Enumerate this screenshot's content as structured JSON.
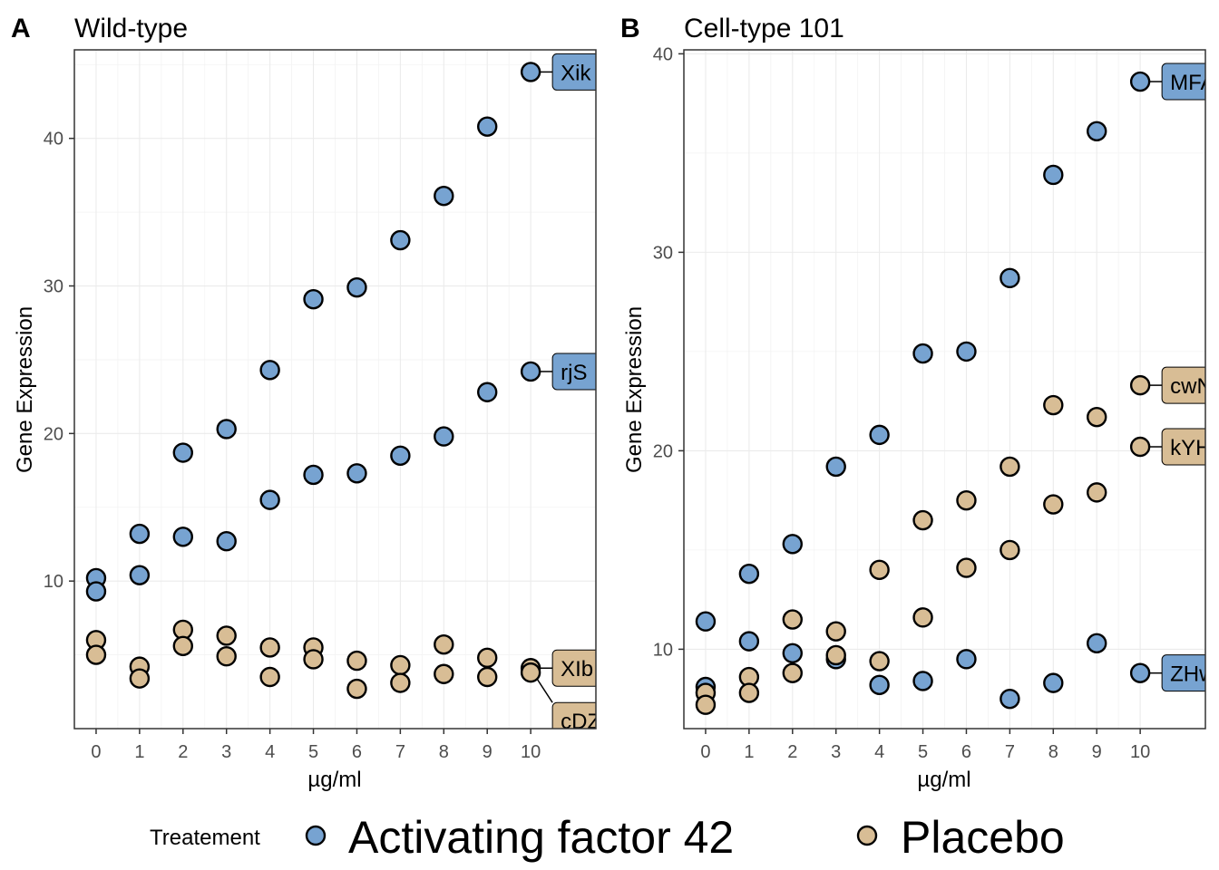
{
  "legend": {
    "title": "Treatement",
    "items": [
      {
        "label": "Activating factor 42",
        "color": "#77a3d1"
      },
      {
        "label": "Placebo",
        "color": "#d8bd95"
      }
    ]
  },
  "chart_data": [
    {
      "type": "scatter",
      "tag": "A",
      "title": "Wild-type",
      "xlabel": "µg/ml",
      "ylabel": "Gene Expression",
      "xlim": [
        -0.5,
        11.5
      ],
      "ylim": [
        0,
        46
      ],
      "xticks": [
        0,
        1,
        2,
        3,
        4,
        5,
        6,
        7,
        8,
        9,
        10
      ],
      "yticks": [
        10,
        20,
        30,
        40
      ],
      "grid": true,
      "series": [
        {
          "group": "Activating factor 42",
          "color": "#77a3d1",
          "x": [
            0,
            1,
            2,
            3,
            4,
            5,
            6,
            7,
            8,
            9,
            10
          ],
          "y": [
            10.2,
            13.2,
            18.7,
            20.3,
            24.3,
            29.1,
            29.9,
            33.1,
            36.1,
            40.8,
            44.5
          ],
          "label": "Xik"
        },
        {
          "group": "Activating factor 42",
          "color": "#77a3d1",
          "x": [
            0,
            1,
            2,
            3,
            4,
            5,
            6,
            7,
            8,
            9,
            10
          ],
          "y": [
            9.3,
            10.4,
            13.0,
            12.7,
            15.5,
            17.2,
            17.3,
            18.5,
            19.8,
            22.8,
            24.2
          ],
          "label": "rjS"
        },
        {
          "group": "Placebo",
          "color": "#d8bd95",
          "x": [
            0,
            1,
            2,
            3,
            4,
            5,
            6,
            7,
            8,
            9,
            10
          ],
          "y": [
            6.0,
            4.2,
            6.7,
            6.3,
            5.5,
            5.5,
            4.6,
            4.3,
            5.7,
            4.8,
            4.1
          ],
          "label": "XIb"
        },
        {
          "group": "Placebo",
          "color": "#d8bd95",
          "x": [
            0,
            1,
            2,
            3,
            4,
            5,
            6,
            7,
            8,
            9,
            10
          ],
          "y": [
            5.0,
            3.4,
            5.6,
            4.9,
            3.5,
            4.7,
            2.7,
            3.1,
            3.7,
            3.5,
            3.8
          ],
          "label": "cDZ"
        }
      ]
    },
    {
      "type": "scatter",
      "tag": "B",
      "title": "Cell-type 101",
      "xlabel": "µg/ml",
      "ylabel": "Gene Expression",
      "xlim": [
        -0.5,
        11.5
      ],
      "ylim": [
        6,
        40.2
      ],
      "xticks": [
        0,
        1,
        2,
        3,
        4,
        5,
        6,
        7,
        8,
        9,
        10
      ],
      "yticks": [
        10,
        20,
        30,
        40
      ],
      "grid": true,
      "series": [
        {
          "group": "Activating factor 42",
          "color": "#77a3d1",
          "x": [
            0,
            1,
            2,
            3,
            4,
            5,
            6,
            7,
            8,
            9,
            10
          ],
          "y": [
            11.4,
            13.8,
            15.3,
            19.2,
            20.8,
            24.9,
            25.0,
            28.7,
            33.9,
            36.1,
            38.6
          ],
          "label": "MFA"
        },
        {
          "group": "Activating factor 42",
          "color": "#77a3d1",
          "x": [
            0,
            1,
            2,
            3,
            4,
            5,
            6,
            7,
            8,
            9,
            10
          ],
          "y": [
            8.1,
            10.4,
            9.8,
            9.5,
            8.2,
            8.4,
            9.5,
            7.5,
            8.3,
            10.3,
            8.8
          ],
          "label": "ZHw"
        },
        {
          "group": "Placebo",
          "color": "#d8bd95",
          "x": [
            0,
            1,
            2,
            3,
            4,
            5,
            6,
            7,
            8,
            9,
            10
          ],
          "y": [
            7.8,
            8.6,
            11.5,
            10.9,
            14.0,
            16.5,
            17.5,
            19.2,
            22.3,
            21.7,
            23.3
          ],
          "label": "cwN"
        },
        {
          "group": "Placebo",
          "color": "#d8bd95",
          "x": [
            0,
            1,
            2,
            3,
            4,
            5,
            6,
            7,
            8,
            9,
            10
          ],
          "y": [
            7.2,
            7.8,
            8.8,
            9.7,
            9.4,
            11.6,
            14.1,
            15.0,
            17.3,
            17.9,
            20.2
          ],
          "label": "kYH"
        }
      ]
    }
  ]
}
